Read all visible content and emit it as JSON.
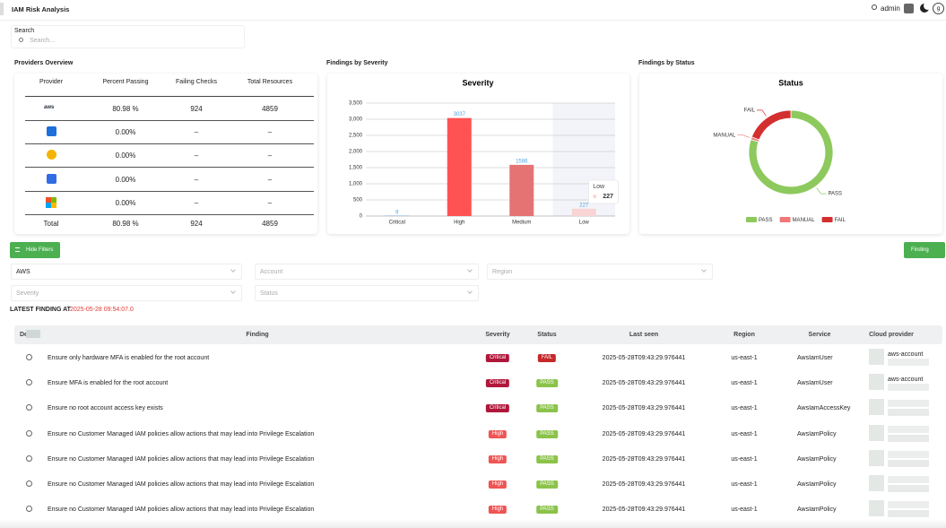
{
  "header": {
    "title": "IAM Risk Analysis",
    "user": "admin",
    "avatar": "g"
  },
  "search": {
    "label": "Search",
    "placeholder": "Search..."
  },
  "providers_overview": {
    "title": "Providers Overview",
    "columns": [
      "Provider",
      "Percent Passing",
      "Failing Checks",
      "Total Resources"
    ],
    "rows": [
      [
        "aws",
        "80.98 %",
        "924",
        "4859"
      ],
      [
        null,
        "0.00%",
        "–",
        "–"
      ],
      [
        null,
        "0.00%",
        "–",
        "–"
      ],
      [
        null,
        "0.00%",
        "–",
        "–"
      ],
      [
        null,
        "0.00%",
        "–",
        "–"
      ]
    ],
    "total": [
      "Total",
      "80.98 %",
      "924",
      "4859"
    ]
  },
  "severity_panel": {
    "title": "Findings by Severity",
    "chart_data": {
      "type": "bar",
      "title": "Severity",
      "categories": [
        "Critical",
        "High",
        "Medium",
        "Low"
      ],
      "values": [
        9,
        3037,
        1586,
        227
      ],
      "colors": [
        "#5b9bd5",
        "#ff5252",
        "#e57373",
        "#f8d4d4"
      ],
      "ylim": [
        0,
        3500
      ],
      "yticks": [
        0,
        500,
        {
          "value": 1000,
          "label": "1,000"
        },
        {
          "value": 1500,
          "label": "1,500"
        },
        {
          "value": 2000,
          "label": "2,000"
        },
        {
          "value": 2500,
          "label": "2,500"
        },
        {
          "value": 3000,
          "label": "3,000"
        },
        {
          "value": 3500,
          "label": "3,500"
        }
      ],
      "grid": true,
      "tooltip": {
        "label": "Low",
        "value": 227
      }
    }
  },
  "status_panel": {
    "title": "Findings by Status",
    "chart_data": {
      "type": "pie",
      "title": "Status",
      "categories": [
        "PASS",
        "MANUAL",
        "FAIL"
      ],
      "values": [
        80,
        1,
        19
      ],
      "colors": [
        "#8dc95d",
        "#f07878",
        "#d32f2f"
      ],
      "donut": true
    }
  },
  "filters": {
    "toggle": "Hide Filters",
    "export": "Finding",
    "fields": [
      "AWS",
      "Account",
      "Region",
      "Severity",
      "Status"
    ]
  },
  "latest": {
    "label": "LATEST FINDING AT",
    "timestamp": "2025-05-28 09:54:07.0"
  },
  "findings_table": {
    "columns": [
      "De",
      "Finding",
      "Severity",
      "Status",
      "Last seen",
      "Region",
      "Service",
      "Cloud provider"
    ],
    "rows": [
      [
        "Ensure only hardware MFA is enabled for the root account",
        "Critical",
        "FAIL",
        "2025-05-28T09:43:29.976441",
        "us-east-1",
        "AwsIamUser",
        "aws-account"
      ],
      [
        "Ensure MFA is enabled for the root account",
        "Critical",
        "PASS",
        "2025-05-28T09:43:29.976441",
        "us-east-1",
        "AwsIamUser",
        "aws-account"
      ],
      [
        "Ensure no root account access key exists",
        "Critical",
        "PASS",
        "2025-05-28T09:43:29.976441",
        "us-east-1",
        "AwsIamAccessKey",
        null
      ],
      [
        "Ensure no Customer Managed IAM policies allow actions that may lead into Privilege Escalation",
        "High",
        "PASS",
        "2025-05-28T09:43:29.976441",
        "us-east-1",
        "AwsIamPolicy",
        null
      ],
      [
        "Ensure no Customer Managed IAM policies allow actions that may lead into Privilege Escalation",
        "High",
        "PASS",
        "2025-05-28T09:43:29.976441",
        "us-east-1",
        "AwsIamPolicy",
        null
      ],
      [
        "Ensure no Customer Managed IAM policies allow actions that may lead into Privilege Escalation",
        "High",
        "PASS",
        "2025-05-28T09:43:29.976441",
        "us-east-1",
        "AwsIamPolicy",
        null
      ],
      [
        "Ensure no Customer Managed IAM policies allow actions that may lead into Privilege Escalation",
        "High",
        "PASS",
        "2025-05-28T09:43:29.976441",
        "us-east-1",
        "AwsIamPolicy",
        null
      ]
    ]
  }
}
